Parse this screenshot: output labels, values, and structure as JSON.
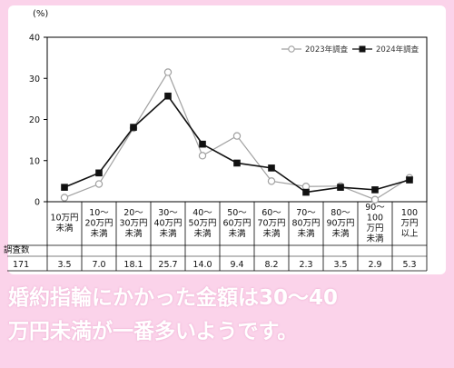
{
  "chart_data": {
    "type": "line",
    "unit_label": "(%)",
    "ylim": [
      0,
      40
    ],
    "yticks": [
      "0",
      "10",
      "20",
      "30",
      "40"
    ],
    "categories": [
      [
        "10万円",
        "未満"
      ],
      [
        "10～",
        "20万円",
        "未満"
      ],
      [
        "20～",
        "30万円",
        "未満"
      ],
      [
        "30～",
        "40万円",
        "未満"
      ],
      [
        "40～",
        "50万円",
        "未満"
      ],
      [
        "50～",
        "60万円",
        "未満"
      ],
      [
        "60～",
        "70万円",
        "未満"
      ],
      [
        "70～",
        "80万円",
        "未満"
      ],
      [
        "80～",
        "90万円",
        "未満"
      ],
      [
        "90～",
        "100",
        "万円",
        "未満"
      ],
      [
        "100",
        "万円",
        "以上"
      ]
    ],
    "series": [
      {
        "name": "2023年調査",
        "color": "#a0a0a0",
        "marker": "open-circle",
        "values": [
          1.0,
          4.3,
          17.9,
          31.5,
          11.2,
          16.0,
          5.0,
          3.7,
          3.8,
          0.5,
          5.8
        ]
      },
      {
        "name": "2024年調査",
        "color": "#111111",
        "marker": "filled-square",
        "values": [
          3.5,
          7.0,
          18.1,
          25.7,
          14.0,
          9.4,
          8.2,
          2.3,
          3.5,
          2.9,
          5.3
        ]
      }
    ],
    "legend_position": "top-right",
    "table": {
      "header_label": "調査数",
      "header_value": "171",
      "values": [
        "3.5",
        "7.0",
        "18.1",
        "25.7",
        "14.0",
        "9.4",
        "8.2",
        "2.3",
        "3.5",
        "2.9",
        "5.3"
      ]
    }
  },
  "caption": {
    "line1": "婚約指輪にかかった金額は30～40",
    "line2": "万円未満が一番多いようです。"
  }
}
